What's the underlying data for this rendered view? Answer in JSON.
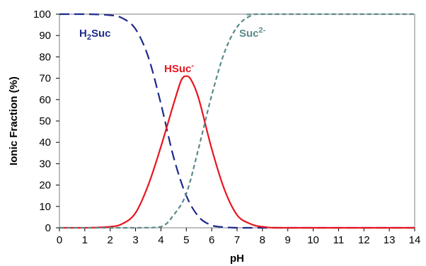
{
  "chart_data": {
    "type": "line",
    "title": "",
    "xlabel": "pH",
    "ylabel": "Ionic Fraction (%)",
    "xlim": [
      0,
      14
    ],
    "ylim": [
      0,
      100
    ],
    "x_ticks": [
      "0",
      "1",
      "2",
      "3",
      "4",
      "5",
      "6",
      "7",
      "8",
      "9",
      "10",
      "11",
      "12",
      "13",
      "14"
    ],
    "y_ticks": [
      "0",
      "10",
      "20",
      "30",
      "40",
      "50",
      "60",
      "70",
      "80",
      "90",
      "100"
    ],
    "grid": false,
    "legend": "none",
    "series": [
      {
        "name": "H2Suc",
        "label_main": "H",
        "label_sub": "2",
        "label_rest": "Suc",
        "color": "#1f2a8c",
        "dash": "long-dash",
        "x": [
          0,
          1,
          2,
          2.5,
          3,
          3.5,
          4,
          4.5,
          5,
          5.5,
          6,
          6.5,
          7,
          8,
          14
        ],
        "y": [
          100,
          100,
          99.5,
          98,
          93,
          80,
          58,
          33,
          15,
          5,
          1.2,
          0.3,
          0,
          0,
          0
        ]
      },
      {
        "name": "HSuc-",
        "label_main": "HSuc",
        "label_sup": "-",
        "color": "#e8141e",
        "dash": "solid",
        "x": [
          0,
          1,
          2,
          2.5,
          3,
          3.5,
          4,
          4.5,
          4.8,
          5,
          5.2,
          5.5,
          6,
          6.5,
          7,
          7.5,
          8,
          9,
          14
        ],
        "y": [
          0,
          0,
          0.5,
          2,
          7,
          20,
          38,
          58,
          69,
          71,
          69,
          60,
          37,
          18,
          6,
          2,
          0.5,
          0,
          0
        ]
      },
      {
        "name": "Suc2-",
        "label_main": "Suc",
        "label_sup": "2-",
        "color": "#5a8a8a",
        "dash": "short-dash",
        "x": [
          0,
          3,
          4,
          4.5,
          5,
          5.5,
          6,
          6.5,
          7,
          7.5,
          8,
          14
        ],
        "y": [
          0,
          0,
          0.5,
          6,
          16,
          38,
          62,
          82,
          94,
          99,
          100,
          100
        ]
      }
    ]
  }
}
